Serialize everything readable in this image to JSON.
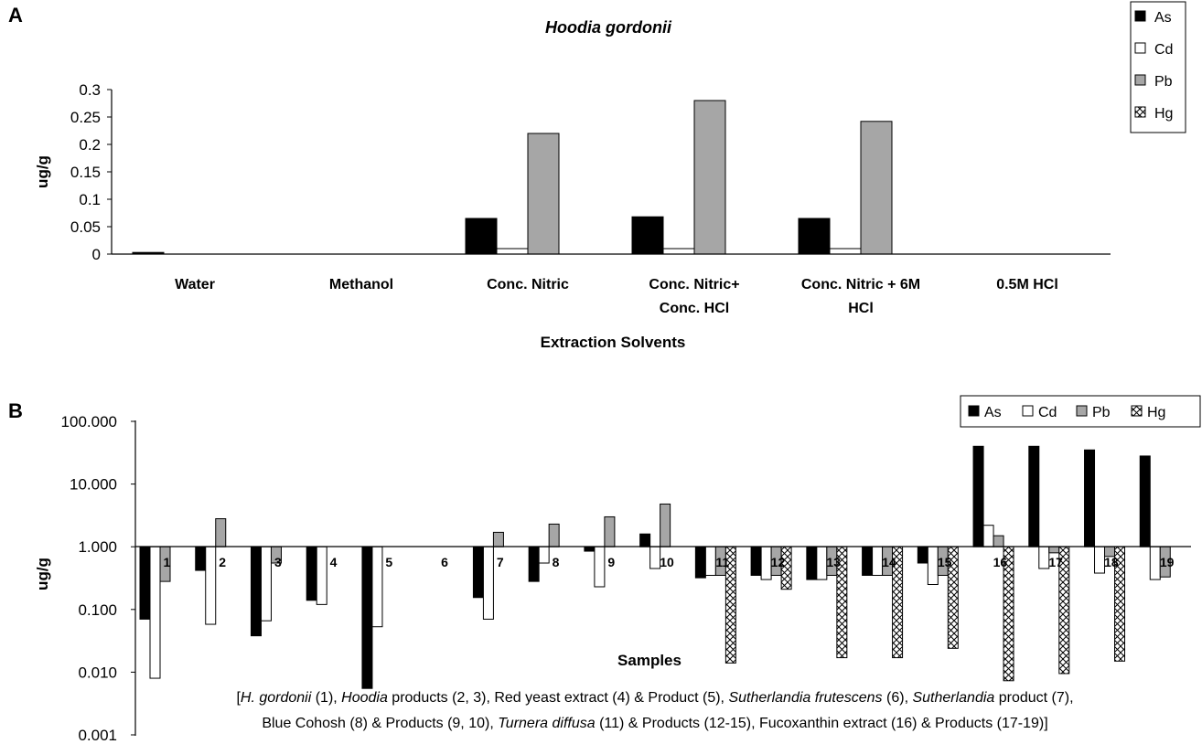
{
  "panels": {
    "a": {
      "letter": "A",
      "xlabel_line1": "Extraction Solvents"
    },
    "b": {
      "letter": "B",
      "caption": {
        "line1": [
          {
            "t": "[",
            "i": false
          },
          {
            "t": "H. gordonii",
            "i": true
          },
          {
            "t": " (1), ",
            "i": false
          },
          {
            "t": "Hoodia",
            "i": true
          },
          {
            "t": " products (2, 3), Red yeast extract (4) & Product (5), ",
            "i": false
          },
          {
            "t": "Sutherlandia frutescens",
            "i": true
          },
          {
            "t": " (6), ",
            "i": false
          },
          {
            "t": "Sutherlandia",
            "i": true
          },
          {
            "t": " product (7),",
            "i": false
          }
        ],
        "line2": [
          {
            "t": "Blue Cohosh (8) & Products (9, 10), ",
            "i": false
          },
          {
            "t": "Turnera diffusa",
            "i": true
          },
          {
            "t": " (11) & Products (12-15), Fucoxanthin extract (16) & Products (17-19)]",
            "i": false
          }
        ]
      }
    }
  },
  "colors": {
    "As": "#000000",
    "Cd": "#ffffff",
    "Pb": "#a6a6a6",
    "Hg": "crosshatch"
  },
  "chart_data": [
    {
      "type": "bar",
      "title": "Hoodia gordonii",
      "xlabel": "Extraction Solvents",
      "ylabel": "ug/g",
      "ylim": [
        0,
        0.3
      ],
      "yticks": [
        "0",
        "0.05",
        "0.1",
        "0.15",
        "0.2",
        "0.25",
        "0.3"
      ],
      "legend_position": "top-right, vertical",
      "categories": [
        [
          "Water"
        ],
        [
          "Methanol"
        ],
        [
          "Conc. Nitric"
        ],
        [
          "Conc. Nitric+",
          "Conc. HCl"
        ],
        [
          "Conc. Nitric + 6M",
          "HCl"
        ],
        [
          "0.5M HCl"
        ]
      ],
      "series": [
        {
          "name": "As",
          "values": [
            0.003,
            0,
            0.065,
            0.068,
            0.065,
            0
          ]
        },
        {
          "name": "Cd",
          "values": [
            0,
            0,
            0.01,
            0.01,
            0.01,
            0
          ]
        },
        {
          "name": "Pb",
          "values": [
            0,
            0,
            0.22,
            0.28,
            0.242,
            0
          ]
        },
        {
          "name": "Hg",
          "values": [
            0,
            0,
            0,
            0,
            0,
            0
          ]
        }
      ]
    },
    {
      "type": "bar",
      "scale": "log",
      "baseline": 1,
      "xlabel": "Samples",
      "ylabel": "ug/g",
      "ylim": [
        0.001,
        100
      ],
      "yticks": [
        "0.001",
        "0.010",
        "0.100",
        "1.000",
        "10.000",
        "100.000"
      ],
      "legend_position": "top-right, horizontal",
      "categories": [
        "1",
        "2",
        "3",
        "4",
        "5",
        "6",
        "7",
        "8",
        "9",
        "10",
        "11",
        "12",
        "13",
        "14",
        "15",
        "16",
        "17",
        "18",
        "19"
      ],
      "series": [
        {
          "name": "As",
          "values": [
            0.07,
            0.42,
            0.038,
            0.14,
            0.0055,
            null,
            0.155,
            0.28,
            0.85,
            1.6,
            0.32,
            0.35,
            0.3,
            0.35,
            0.55,
            40,
            40,
            35,
            28
          ]
        },
        {
          "name": "Cd",
          "values": [
            0.008,
            0.058,
            0.066,
            0.12,
            0.053,
            null,
            0.07,
            0.55,
            0.23,
            0.45,
            0.35,
            0.3,
            0.3,
            0.35,
            0.25,
            2.2,
            0.45,
            0.38,
            0.3
          ]
        },
        {
          "name": "Pb",
          "values": [
            0.28,
            2.8,
            0.55,
            null,
            null,
            null,
            1.7,
            2.3,
            3.0,
            4.8,
            0.35,
            0.35,
            0.35,
            0.35,
            0.35,
            1.5,
            0.8,
            0.7,
            0.33
          ]
        },
        {
          "name": "Hg",
          "values": [
            null,
            null,
            null,
            null,
            null,
            null,
            null,
            null,
            null,
            null,
            0.014,
            0.21,
            0.017,
            0.017,
            0.024,
            0.0073,
            0.0095,
            0.015,
            null
          ]
        }
      ]
    }
  ]
}
